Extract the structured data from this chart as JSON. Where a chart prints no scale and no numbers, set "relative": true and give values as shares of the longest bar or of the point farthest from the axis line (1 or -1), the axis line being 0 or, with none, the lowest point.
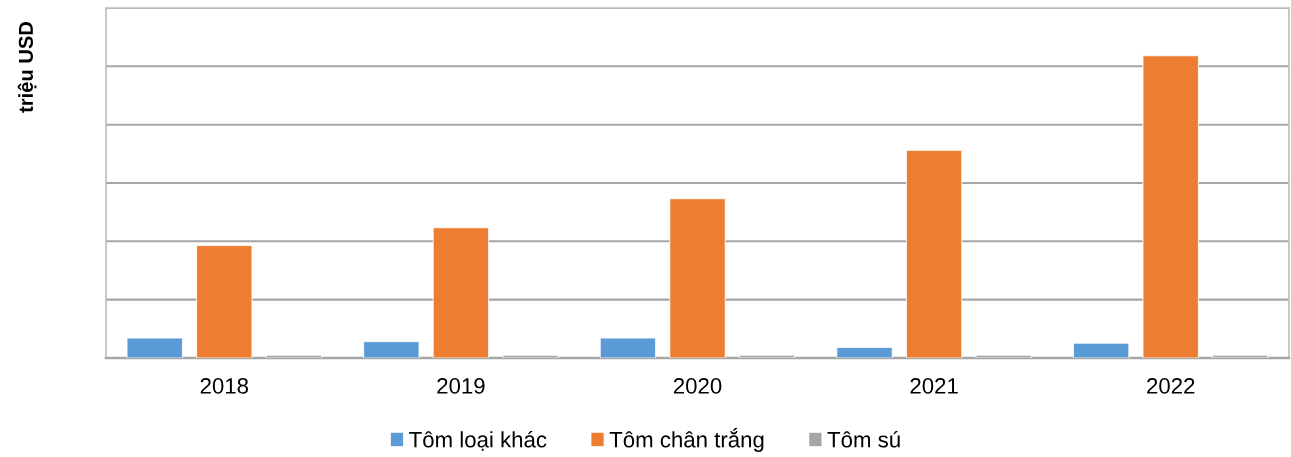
{
  "chart_data": {
    "type": "bar",
    "ylabel": "triệu USD",
    "relative": true,
    "categories": [
      "2018",
      "2019",
      "2020",
      "2021",
      "2022"
    ],
    "series": [
      {
        "name": "Tôm loại khác",
        "color": "#5b9bd5",
        "values": [
          0.066,
          0.054,
          0.066,
          0.035,
          0.049
        ]
      },
      {
        "name": "Tôm chân trắng",
        "color": "#ed7d31",
        "values": [
          0.372,
          0.431,
          0.527,
          0.687,
          1
        ]
      },
      {
        "name": "Tôm sú",
        "color": "#a5a5a5",
        "values": [
          0.009,
          0.009,
          0.009,
          0.009,
          0.009
        ]
      }
    ],
    "grid": "y",
    "legend": "bottom"
  }
}
